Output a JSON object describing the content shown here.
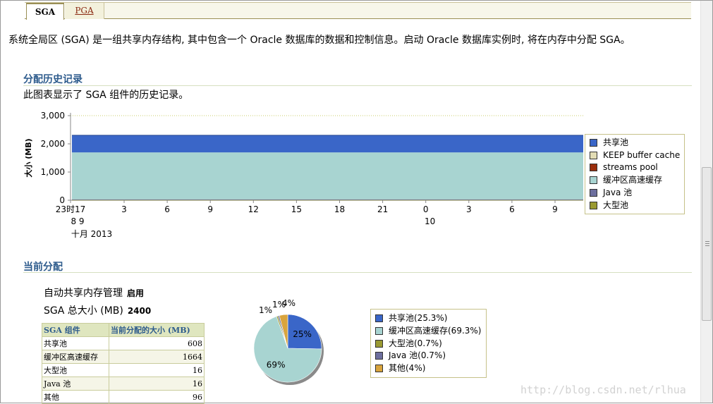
{
  "tabs": [
    {
      "label": "SGA",
      "active": true
    },
    {
      "label": "PGA",
      "active": false
    }
  ],
  "intro": "系统全局区 (SGA) 是一组共享内存结构, 其中包含一个 Oracle 数据库的数据和控制信息。启动 Oracle 数据库实例时, 将在内存中分配 SGA。",
  "history": {
    "heading": "分配历史记录",
    "description": "此图表显示了 SGA 组件的历史记录。"
  },
  "current": {
    "heading": "当前分配",
    "auto_label": "自动共享内存管理",
    "auto_value": "启用",
    "total_label": "SGA 总大小 (MB)",
    "total_value": "2400"
  },
  "table": {
    "headers": [
      "SGA 组件",
      "当前分配的大小 (MB)"
    ],
    "rows": [
      [
        "共享池",
        "608"
      ],
      [
        "缓冲区高速缓存",
        "1664"
      ],
      [
        "大型池",
        "16"
      ],
      [
        "Java 池",
        "16"
      ],
      [
        "其他",
        "96"
      ]
    ]
  },
  "chart_data": [
    {
      "type": "area",
      "ylabel": "大小 (MB)",
      "ylim": [
        0,
        3000
      ],
      "yticks": [
        "3,000",
        "2,000",
        "1,000",
        "0"
      ],
      "xticks": [
        "23时17",
        "3",
        "6",
        "9",
        "12",
        "15",
        "18",
        "21",
        "0",
        "3",
        "6",
        "9"
      ],
      "xsub": [
        "8 9",
        "10"
      ],
      "xdate": "十月 2013",
      "stacked": true,
      "series": [
        {
          "name": "共享池",
          "color": "#3a66c8",
          "value": 608
        },
        {
          "name": "KEEP buffer cache",
          "color": "#e2dcb4",
          "value": 0
        },
        {
          "name": "streams pool",
          "color": "#9a2d0c",
          "value": 0
        },
        {
          "name": "缓冲区高速缓存",
          "color": "#a8d4d1",
          "value": 1664
        },
        {
          "name": "Java 池",
          "color": "#6d6f9e",
          "value": 16
        },
        {
          "name": "大型池",
          "color": "#9a9a32",
          "value": 16
        }
      ],
      "legend_position": "right"
    },
    {
      "type": "pie",
      "slices": [
        {
          "name": "共享池(25.3%)",
          "value": 25.3,
          "label": "25%",
          "color": "#3a66c8"
        },
        {
          "name": "缓冲区高速缓存(69.3%)",
          "value": 69.3,
          "label": "69%",
          "color": "#a8d4d1"
        },
        {
          "name": "大型池(0.7%)",
          "value": 0.7,
          "label": "",
          "color": "#9a9a32"
        },
        {
          "name": "Java 池(0.7%)",
          "value": 0.7,
          "label": "",
          "color": "#6d6f9e"
        },
        {
          "name": "其他(4%)",
          "value": 4,
          "label": "",
          "color": "#d9a43c"
        }
      ],
      "outer_labels": [
        "1%",
        "1%",
        "4%"
      ],
      "legend_position": "right"
    }
  ],
  "watermark": "http://blog.csdn.net/rlhua"
}
